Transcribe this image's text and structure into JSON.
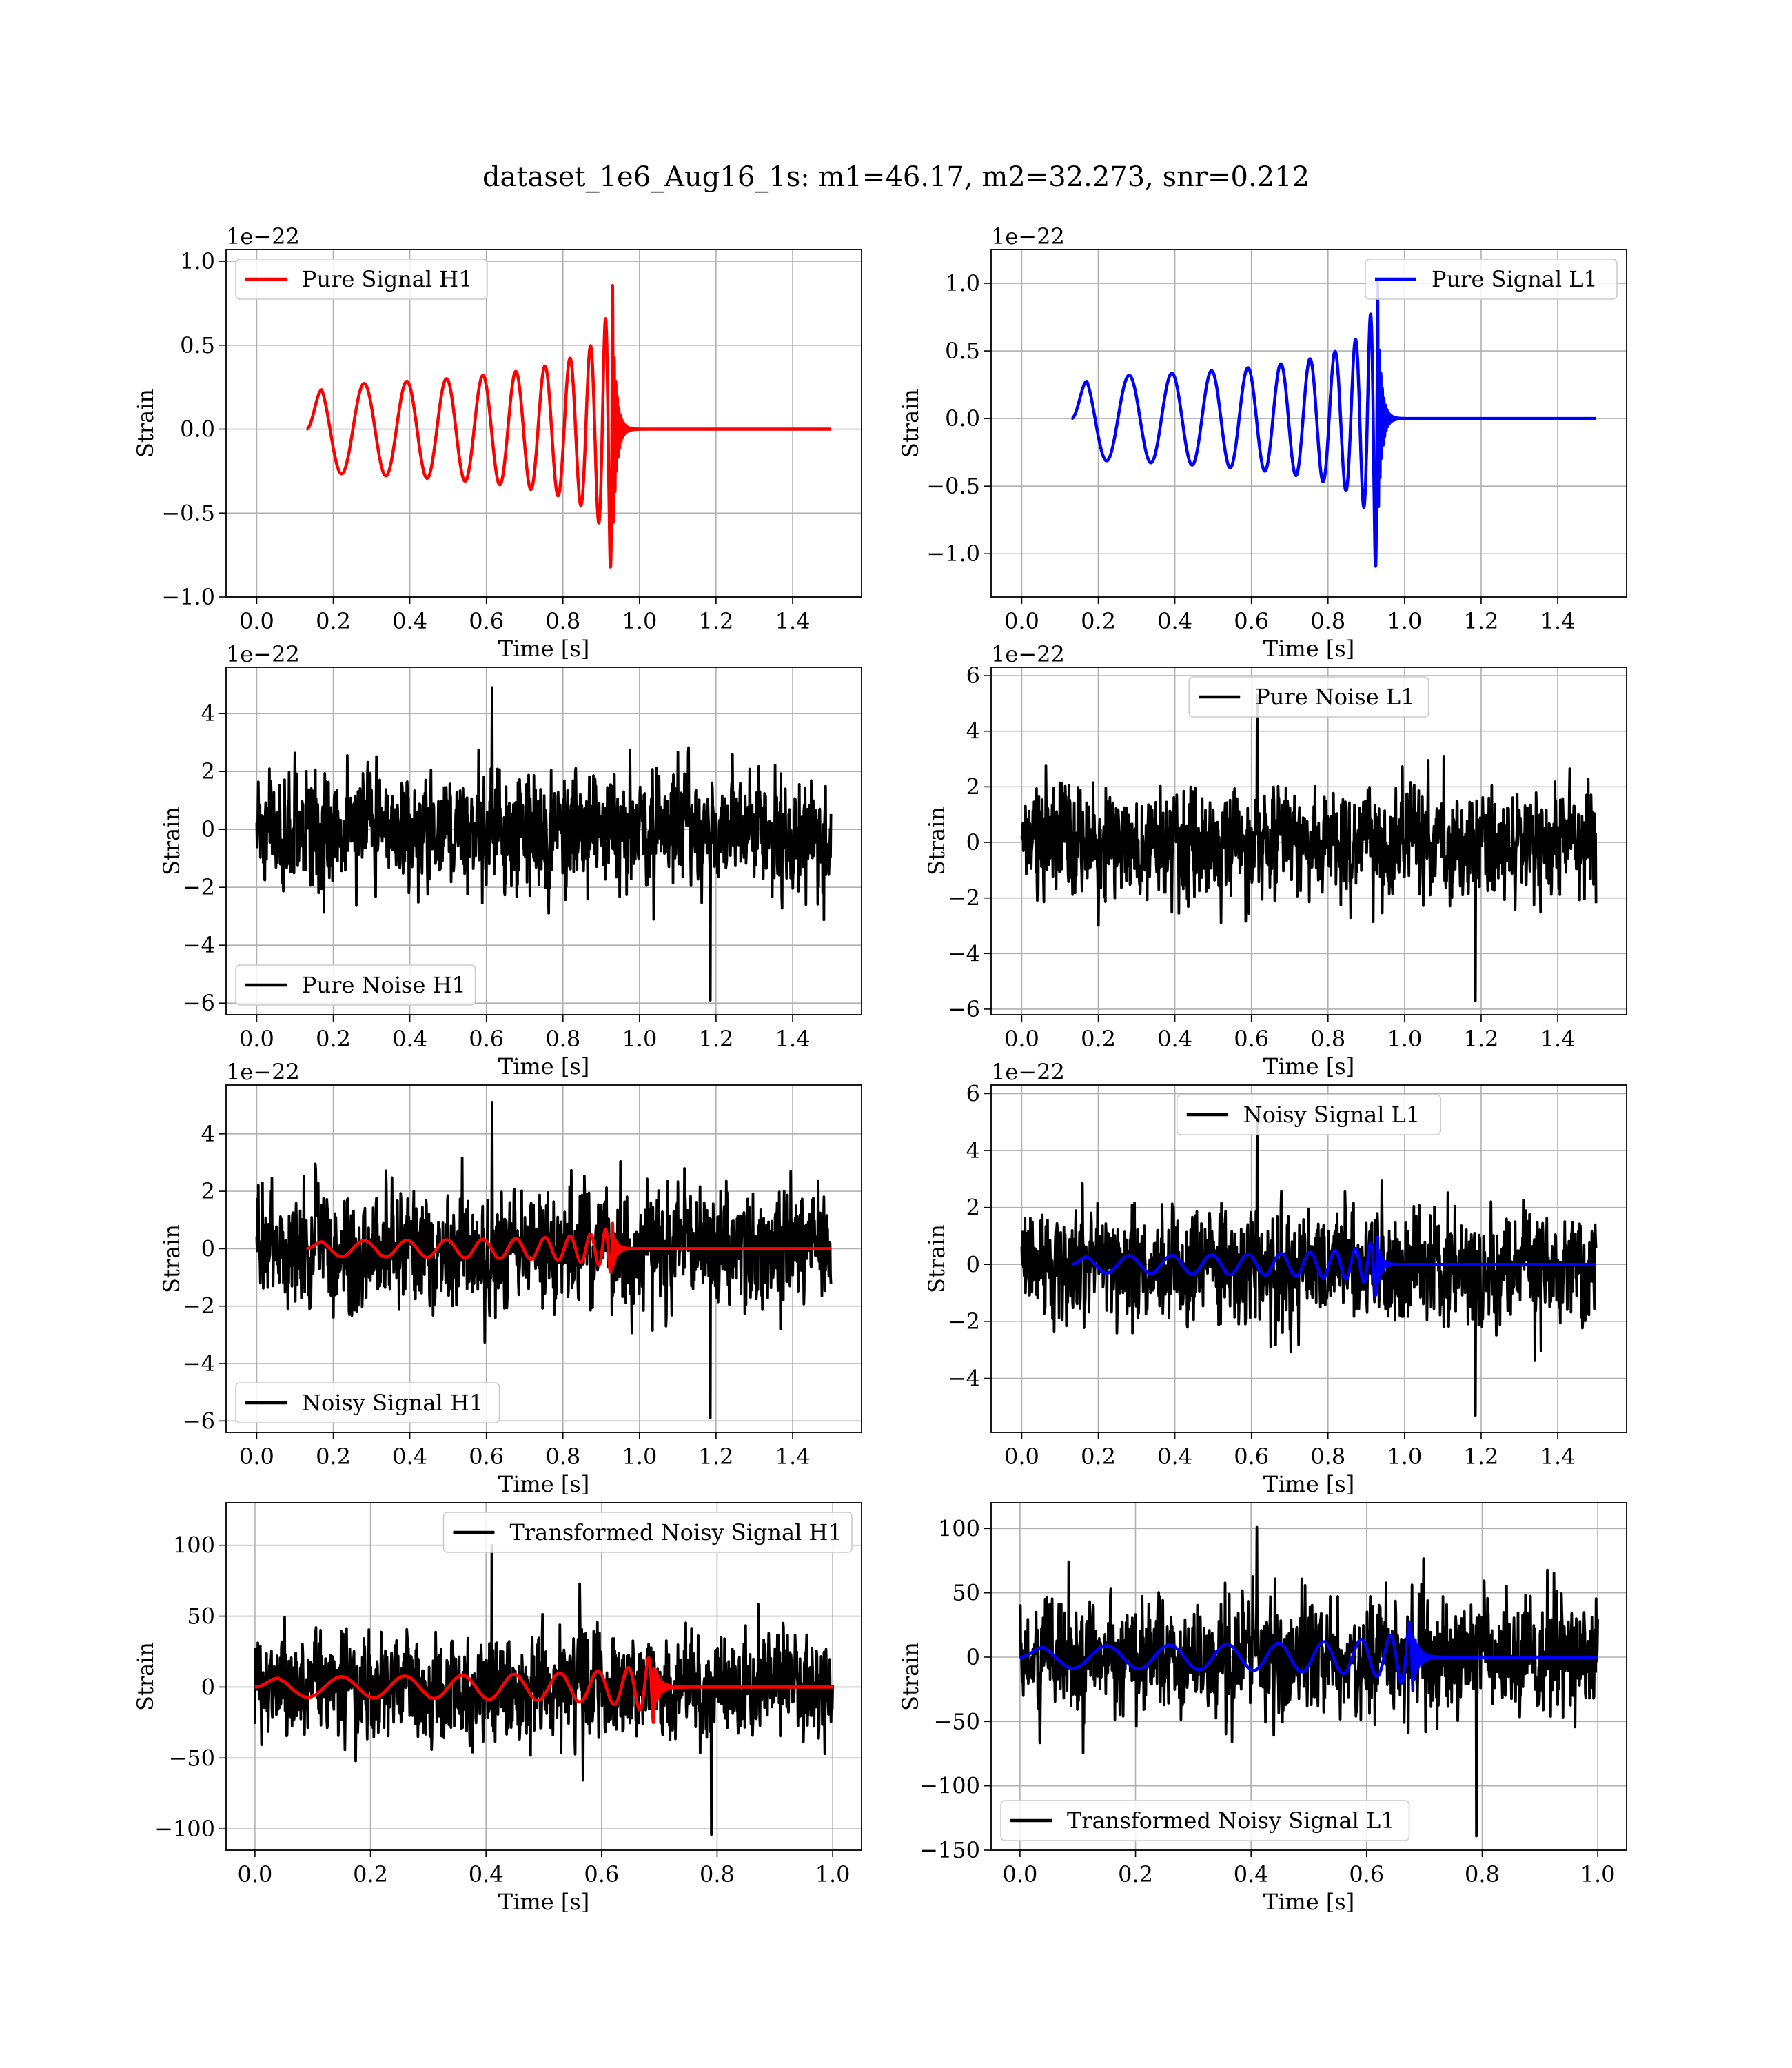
{
  "figure": {
    "title": "dataset_1e6_Aug16_1s: m1=46.17, m2=32.273, snr=0.212"
  },
  "colors": {
    "h1_signal": "#ff0000",
    "l1_signal": "#0000ff",
    "noise": "#000000",
    "grid": "#b0b0b0"
  },
  "chart_data": [
    {
      "id": "pure-signal-h1",
      "type": "line",
      "xlabel": "Time [s]",
      "ylabel": "Strain",
      "offset_text": "1e−22",
      "xlim": [
        -0.08,
        1.58
      ],
      "ylim": [
        -1.0,
        1.07
      ],
      "xticks": [
        0.0,
        0.2,
        0.4,
        0.6,
        0.8,
        1.0,
        1.2,
        1.4
      ],
      "xtick_labels": [
        "0.0",
        "0.2",
        "0.4",
        "0.6",
        "0.8",
        "1.0",
        "1.2",
        "1.4"
      ],
      "yticks": [
        -1.0,
        -0.5,
        0.0,
        0.5,
        1.0
      ],
      "ytick_labels": [
        "−1.0",
        "−0.5",
        "0.0",
        "0.5",
        "1.0"
      ],
      "legend": {
        "position": "upper-left",
        "entries": [
          {
            "label": "Pure Signal H1",
            "color": "#ff0000"
          }
        ]
      },
      "series": [
        {
          "name": "Pure Signal H1",
          "kind": "chirp",
          "color": "#ff0000",
          "t_start": 0.13,
          "t_merge": 0.93,
          "t_end": 1.5,
          "peak": 0.97,
          "trough": -0.91
        }
      ]
    },
    {
      "id": "pure-signal-l1",
      "type": "line",
      "xlabel": "Time [s]",
      "ylabel": "Strain",
      "offset_text": "1e−22",
      "xlim": [
        -0.08,
        1.58
      ],
      "ylim": [
        -1.32,
        1.25
      ],
      "xticks": [
        0.0,
        0.2,
        0.4,
        0.6,
        0.8,
        1.0,
        1.2,
        1.4
      ],
      "xtick_labels": [
        "0.0",
        "0.2",
        "0.4",
        "0.6",
        "0.8",
        "1.0",
        "1.2",
        "1.4"
      ],
      "yticks": [
        -1.0,
        -0.5,
        0.0,
        0.5,
        1.0
      ],
      "ytick_labels": [
        "−1.0",
        "−0.5",
        "0.0",
        "0.5",
        "1.0"
      ],
      "legend": {
        "position": "upper-right",
        "entries": [
          {
            "label": "Pure Signal L1",
            "color": "#0000ff"
          }
        ]
      },
      "series": [
        {
          "name": "Pure Signal L1",
          "kind": "chirp",
          "color": "#0000ff",
          "t_start": 0.13,
          "t_merge": 0.93,
          "t_end": 1.5,
          "peak": 1.14,
          "trough": -1.21
        }
      ]
    },
    {
      "id": "pure-noise-h1",
      "type": "line",
      "xlabel": "Time [s]",
      "ylabel": "Strain",
      "offset_text": "1e−22",
      "xlim": [
        -0.08,
        1.58
      ],
      "ylim": [
        -6.4,
        5.6
      ],
      "xticks": [
        0.0,
        0.2,
        0.4,
        0.6,
        0.8,
        1.0,
        1.2,
        1.4
      ],
      "xtick_labels": [
        "0.0",
        "0.2",
        "0.4",
        "0.6",
        "0.8",
        "1.0",
        "1.2",
        "1.4"
      ],
      "yticks": [
        -6,
        -4,
        -2,
        0,
        2,
        4
      ],
      "ytick_labels": [
        "−6",
        "−4",
        "−2",
        "0",
        "2",
        "4"
      ],
      "legend": {
        "position": "lower-left",
        "entries": [
          {
            "label": "Pure Noise H1",
            "color": "#000000"
          }
        ]
      },
      "series": [
        {
          "name": "Pure Noise H1",
          "kind": "noise",
          "color": "#000000",
          "t_start": 0.0,
          "t_end": 1.5,
          "max": 4.9,
          "min": -5.9
        }
      ]
    },
    {
      "id": "pure-noise-l1",
      "type": "line",
      "xlabel": "Time [s]",
      "ylabel": "Strain",
      "offset_text": "1e−22",
      "xlim": [
        -0.08,
        1.58
      ],
      "ylim": [
        -6.2,
        6.3
      ],
      "xticks": [
        0.0,
        0.2,
        0.4,
        0.6,
        0.8,
        1.0,
        1.2,
        1.4
      ],
      "xtick_labels": [
        "0.0",
        "0.2",
        "0.4",
        "0.6",
        "0.8",
        "1.0",
        "1.2",
        "1.4"
      ],
      "yticks": [
        -6,
        -4,
        -2,
        0,
        2,
        4,
        6
      ],
      "ytick_labels": [
        "−6",
        "−4",
        "−2",
        "0",
        "2",
        "4",
        "6"
      ],
      "legend": {
        "position": "upper-center",
        "entries": [
          {
            "label": "Pure Noise L1",
            "color": "#000000"
          }
        ]
      },
      "series": [
        {
          "name": "Pure Noise L1",
          "kind": "noise",
          "color": "#000000",
          "t_start": 0.0,
          "t_end": 1.5,
          "max": 5.3,
          "min": -5.7
        }
      ]
    },
    {
      "id": "noisy-signal-h1",
      "type": "line",
      "xlabel": "Time [s]",
      "ylabel": "Strain",
      "offset_text": "1e−22",
      "xlim": [
        -0.08,
        1.58
      ],
      "ylim": [
        -6.4,
        5.7
      ],
      "xticks": [
        0.0,
        0.2,
        0.4,
        0.6,
        0.8,
        1.0,
        1.2,
        1.4
      ],
      "xtick_labels": [
        "0.0",
        "0.2",
        "0.4",
        "0.6",
        "0.8",
        "1.0",
        "1.2",
        "1.4"
      ],
      "yticks": [
        -6,
        -4,
        -2,
        0,
        2,
        4
      ],
      "ytick_labels": [
        "−6",
        "−4",
        "−2",
        "0",
        "2",
        "4"
      ],
      "legend": {
        "position": "lower-left",
        "entries": [
          {
            "label": "Noisy Signal H1",
            "color": "#000000"
          }
        ]
      },
      "series": [
        {
          "name": "Noisy Signal H1",
          "kind": "noise",
          "color": "#000000",
          "t_start": 0.0,
          "t_end": 1.5,
          "max": 5.1,
          "min": -5.9
        },
        {
          "kind": "chirp",
          "color": "#ff0000",
          "t_start": 0.13,
          "t_merge": 0.93,
          "t_end": 1.5,
          "peak": 1.0,
          "trough": -0.9
        }
      ]
    },
    {
      "id": "noisy-signal-l1",
      "type": "line",
      "xlabel": "Time [s]",
      "ylabel": "Strain",
      "offset_text": "1e−22",
      "xlim": [
        -0.08,
        1.58
      ],
      "ylim": [
        -5.9,
        6.3
      ],
      "xticks": [
        0.0,
        0.2,
        0.4,
        0.6,
        0.8,
        1.0,
        1.2,
        1.4
      ],
      "xtick_labels": [
        "0.0",
        "0.2",
        "0.4",
        "0.6",
        "0.8",
        "1.0",
        "1.2",
        "1.4"
      ],
      "yticks": [
        -4,
        -2,
        0,
        2,
        4,
        6
      ],
      "ytick_labels": [
        "−4",
        "−2",
        "0",
        "2",
        "4",
        "6"
      ],
      "legend": {
        "position": "upper-center",
        "entries": [
          {
            "label": "Noisy Signal L1",
            "color": "#000000"
          }
        ]
      },
      "series": [
        {
          "name": "Noisy Signal L1",
          "kind": "noise",
          "color": "#000000",
          "t_start": 0.0,
          "t_end": 1.5,
          "max": 5.4,
          "min": -5.3
        },
        {
          "kind": "chirp",
          "color": "#0000ff",
          "t_start": 0.13,
          "t_merge": 0.93,
          "t_end": 1.5,
          "peak": 1.1,
          "trough": -1.2
        }
      ]
    },
    {
      "id": "transformed-noisy-signal-h1",
      "type": "line",
      "xlabel": "Time [s]",
      "ylabel": "Strain",
      "offset_text": "",
      "xlim": [
        -0.05,
        1.05
      ],
      "ylim": [
        -115,
        130
      ],
      "xticks": [
        0.0,
        0.2,
        0.4,
        0.6,
        0.8,
        1.0
      ],
      "xtick_labels": [
        "0.0",
        "0.2",
        "0.4",
        "0.6",
        "0.8",
        "1.0"
      ],
      "yticks": [
        -100,
        -50,
        0,
        50,
        100
      ],
      "ytick_labels": [
        "−100",
        "−50",
        "0",
        "50",
        "100"
      ],
      "legend": {
        "position": "upper-right",
        "entries": [
          {
            "label": "Transformed Noisy Signal H1",
            "color": "#000000"
          }
        ]
      },
      "series": [
        {
          "name": "Transformed Noisy Signal H1",
          "kind": "noise",
          "color": "#000000",
          "t_start": 0.0,
          "t_end": 1.0,
          "max": 100,
          "min": -104
        },
        {
          "kind": "chirp",
          "color": "#ff0000",
          "t_start": 0.0,
          "t_merge": 0.69,
          "t_end": 1.0,
          "peak": 25,
          "trough": -25
        }
      ]
    },
    {
      "id": "transformed-noisy-signal-l1",
      "type": "line",
      "xlabel": "Time [s]",
      "ylabel": "Strain",
      "offset_text": "",
      "xlim": [
        -0.05,
        1.05
      ],
      "ylim": [
        -150,
        120
      ],
      "xticks": [
        0.0,
        0.2,
        0.4,
        0.6,
        0.8,
        1.0
      ],
      "xtick_labels": [
        "0.0",
        "0.2",
        "0.4",
        "0.6",
        "0.8",
        "1.0"
      ],
      "yticks": [
        -150,
        -100,
        -50,
        0,
        50,
        100
      ],
      "ytick_labels": [
        "−150",
        "−100",
        "−50",
        "0",
        "50",
        "100"
      ],
      "legend": {
        "position": "lower-left",
        "entries": [
          {
            "label": "Transformed Noisy Signal L1",
            "color": "#000000"
          }
        ]
      },
      "series": [
        {
          "name": "Transformed Noisy Signal L1",
          "kind": "noise",
          "color": "#000000",
          "t_start": 0.0,
          "t_end": 1.0,
          "max": 101,
          "min": -139
        },
        {
          "kind": "chirp",
          "color": "#0000ff",
          "t_start": 0.0,
          "t_merge": 0.68,
          "t_end": 1.0,
          "peak": 30,
          "trough": -30
        }
      ]
    }
  ]
}
